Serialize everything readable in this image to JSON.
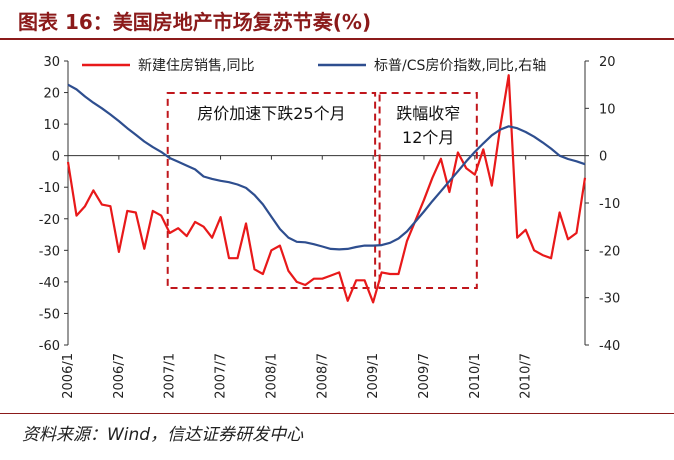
{
  "figure": {
    "title": "图表 16：美国房地产市场复苏节奏(%)",
    "source": "资料来源：Wind，信达证券研发中心"
  },
  "chart_data": {
    "type": "line",
    "title": "",
    "xlabel": "",
    "ylabel_left": "",
    "ylabel_right": "",
    "legend_position": "top",
    "grid": false,
    "y_left": {
      "min": -60,
      "max": 30,
      "ticks": [
        30,
        20,
        10,
        0,
        -10,
        -20,
        -30,
        -40,
        -50,
        -60
      ]
    },
    "y_right": {
      "min": -40,
      "max": 20,
      "ticks": [
        20,
        10,
        0,
        -10,
        -20,
        -30,
        -40
      ]
    },
    "x_ticks": [
      "2006/1",
      "2006/7",
      "2007/1",
      "2007/7",
      "2008/1",
      "2008/7",
      "2009/1",
      "2009/7",
      "2010/1",
      "2010/7"
    ],
    "series": [
      {
        "name": "新建住房销售,同比",
        "axis": "left",
        "color": "#E8191A",
        "values": [
          -2,
          -19,
          -16,
          -11,
          -15.5,
          -16,
          -30.5,
          -17.5,
          -18,
          -29.5,
          -17.5,
          -19,
          -24.5,
          -23,
          -25.5,
          -21,
          -22.5,
          -26,
          -19.5,
          -32.5,
          -32.5,
          -21.5,
          -36,
          -37.5,
          -30,
          -28.5,
          -36.5,
          -40,
          -41,
          -39,
          -39,
          -38,
          -37,
          -46,
          -39.5,
          -39.5,
          -46.5,
          -37,
          -37.5,
          -37.5,
          -27,
          -20.5,
          -14,
          -7,
          -1,
          -11.5,
          1,
          -4,
          -6,
          2,
          -9.5,
          9,
          25.5,
          -26,
          -23.5,
          -30,
          -31.5,
          -32.5,
          -18,
          -26.5,
          -24.5,
          -7
        ]
      },
      {
        "name": "标普/CS房价指数,同比,右轴",
        "axis": "right",
        "color": "#2E4E8F",
        "values": [
          15,
          14,
          12.5,
          11.2,
          10,
          8.7,
          7.3,
          5.8,
          4.4,
          3,
          1.8,
          0.8,
          -0.5,
          -1.3,
          -2.1,
          -2.9,
          -4.4,
          -4.9,
          -5.3,
          -5.6,
          -6.1,
          -6.8,
          -8.3,
          -10.3,
          -12.9,
          -15.5,
          -17.3,
          -18.2,
          -18.3,
          -18.7,
          -19.2,
          -19.7,
          -19.8,
          -19.7,
          -19.3,
          -19,
          -19,
          -18.9,
          -18.4,
          -17.5,
          -16,
          -13.9,
          -11.8,
          -9.6,
          -7.5,
          -5.4,
          -3.3,
          -1.2,
          0.8,
          2.6,
          4.3,
          5.5,
          6.2,
          5.8,
          5,
          4,
          2.8,
          1.5,
          0,
          -0.7,
          -1.2,
          -1.8
        ]
      }
    ],
    "annotations": [
      {
        "text": "房价加速下跌25个月",
        "period": [
          "2007/1",
          "2009/1"
        ]
      },
      {
        "text": "跌幅收窄\n12个月",
        "period": [
          "2009/2",
          "2010/1"
        ]
      }
    ]
  }
}
